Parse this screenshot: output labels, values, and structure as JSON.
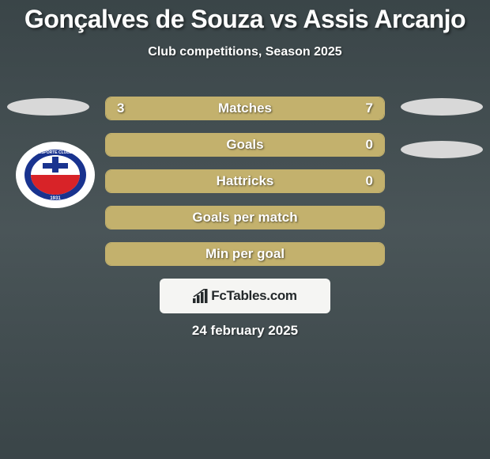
{
  "title": "Gonçalves de Souza vs Assis Arcanjo",
  "subtitle": "Club competitions, Season 2025",
  "date": "24 february 2025",
  "watermark": "FcTables.com",
  "colors": {
    "bar_fill": "#c3b16d",
    "bar_empty": "#3b4548",
    "oval": "#d8d8d8",
    "bg_gradient_top": "#3a4548",
    "bg_gradient_mid": "#4a5558",
    "watermark_bg": "#f5f5f3",
    "watermark_text": "#24292b",
    "text": "#ffffff"
  },
  "stats": [
    {
      "label": "Matches",
      "left_value": "3",
      "right_value": "7",
      "left_pct": 30,
      "right_pct": 70
    },
    {
      "label": "Goals",
      "left_value": "",
      "right_value": "0",
      "left_pct": 100,
      "right_pct": 0
    },
    {
      "label": "Hattricks",
      "left_value": "",
      "right_value": "0",
      "left_pct": 100,
      "right_pct": 0
    },
    {
      "label": "Goals per match",
      "left_value": "",
      "right_value": "",
      "left_pct": 100,
      "right_pct": 0
    },
    {
      "label": "Min per goal",
      "left_value": "",
      "right_value": "",
      "left_pct": 100,
      "right_pct": 0
    }
  ],
  "club_logo": {
    "name": "Esporte Clube Bahia",
    "year": "1931",
    "colors": {
      "outer": "#ffffff",
      "ring": "#19338f",
      "inner_top": "#ffffff",
      "inner_bottom": "#d82328",
      "cross": "#19338f"
    }
  }
}
